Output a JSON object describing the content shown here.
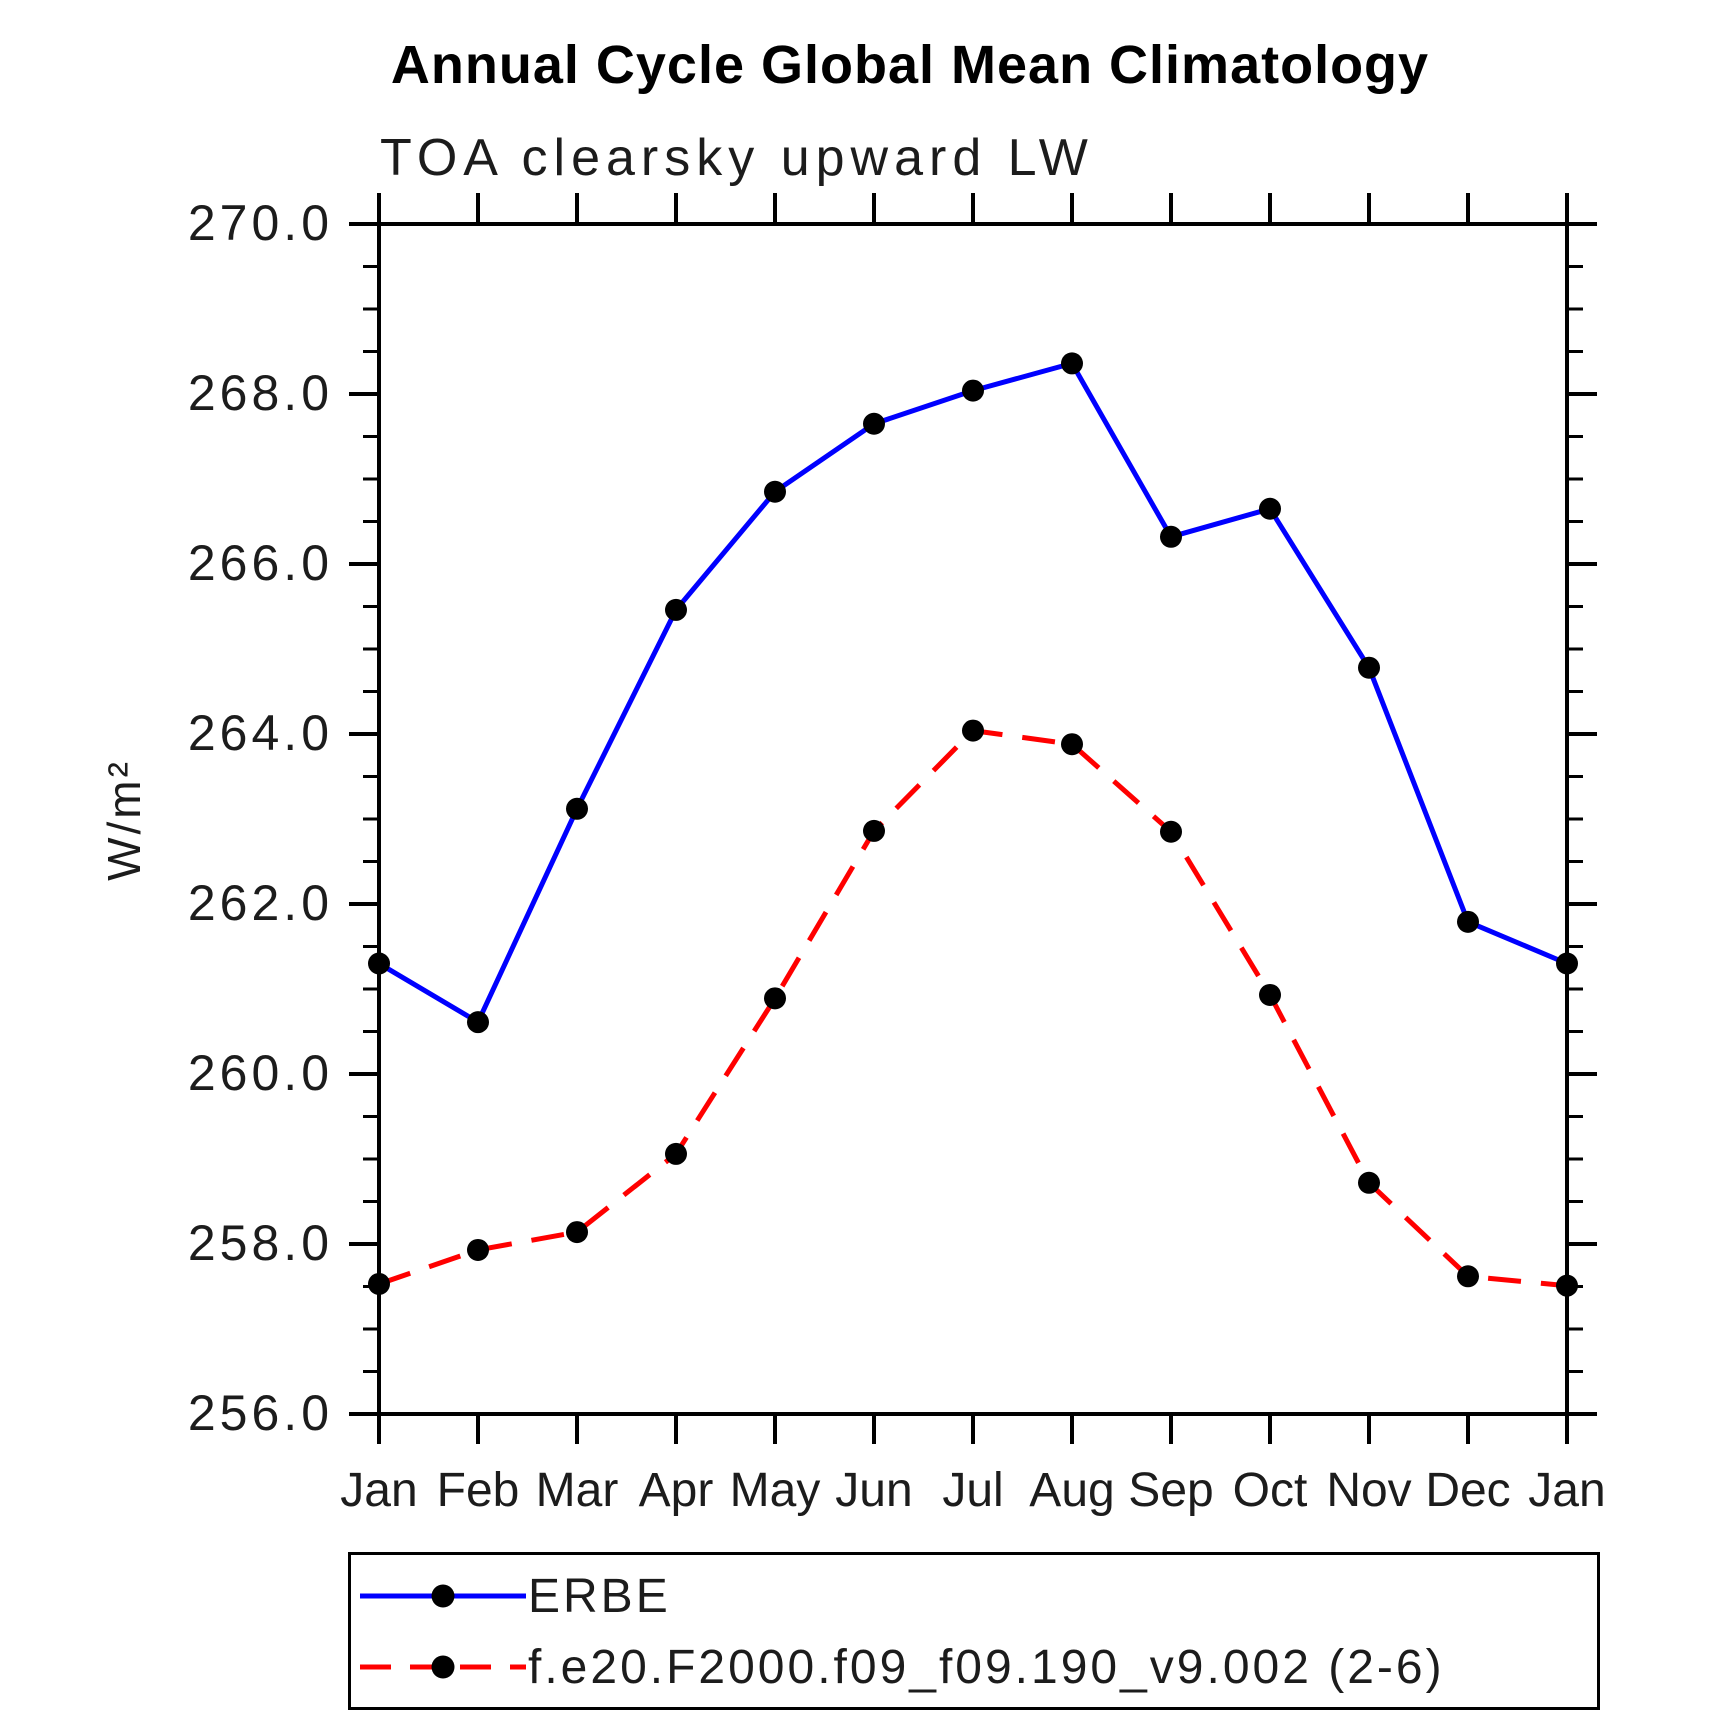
{
  "header": {
    "title": "Annual Cycle Global Mean Climatology",
    "subtitle": "TOA clearsky upward LW"
  },
  "colors": {
    "erbe_line": "#0000ff",
    "model_line": "#ff0000",
    "marker": "#000000",
    "axis": "#000000",
    "background": "#ffffff"
  },
  "chart_data": {
    "type": "line",
    "title": "Annual Cycle Global Mean Climatology",
    "subtitle": "TOA clearsky upward LW",
    "xlabel": "",
    "ylabel": "W/m²",
    "categories": [
      "Jan",
      "Feb",
      "Mar",
      "Apr",
      "May",
      "Jun",
      "Jul",
      "Aug",
      "Sep",
      "Oct",
      "Nov",
      "Dec",
      "Jan"
    ],
    "ylim": [
      256.0,
      270.0
    ],
    "ytick_major_interval": 2.0,
    "ytick_minor_interval": 0.5,
    "yticks_labeled": [
      270.0,
      268.0,
      266.0,
      264.0,
      262.0,
      260.0,
      258.0,
      256.0
    ],
    "grid": false,
    "legend_position": "bottom-left",
    "series": [
      {
        "name": "ERBE",
        "color": "#0000ff",
        "line_style": "solid",
        "marker": "filled-circle",
        "marker_color": "#000000",
        "values": [
          261.3,
          260.61,
          263.12,
          265.46,
          266.85,
          267.65,
          268.04,
          268.36,
          266.32,
          266.65,
          264.78,
          261.79,
          261.3
        ]
      },
      {
        "name": "f.e20.F2000.f09_f09.190_v9.002 (2-6)",
        "color": "#ff0000",
        "line_style": "dashed",
        "marker": "filled-circle",
        "marker_color": "#000000",
        "values": [
          257.53,
          257.93,
          258.14,
          259.06,
          260.89,
          262.86,
          264.04,
          263.88,
          262.85,
          260.93,
          258.72,
          257.62,
          257.51
        ]
      }
    ]
  },
  "legend": {
    "items": [
      {
        "label": "ERBE"
      },
      {
        "label": "f.e20.F2000.f09_f09.190_v9.002 (2-6)"
      }
    ]
  }
}
